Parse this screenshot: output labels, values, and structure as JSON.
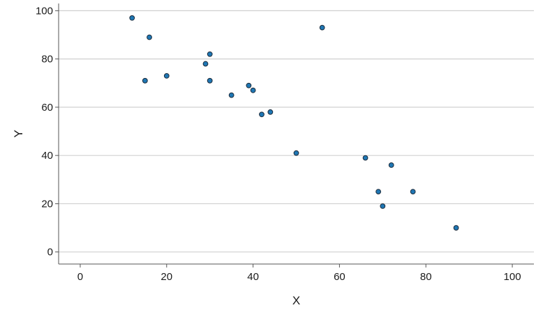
{
  "chart_data": {
    "type": "scatter",
    "title": "",
    "xlabel": "X",
    "ylabel": "Y",
    "xlim": [
      -5,
      105
    ],
    "ylim": [
      -5,
      103
    ],
    "xticks": [
      0,
      20,
      40,
      60,
      80,
      100
    ],
    "yticks": [
      0,
      20,
      40,
      60,
      80,
      100
    ],
    "grid": {
      "horizontal": true,
      "vertical": false
    },
    "point_color": "#1f77b4",
    "points": [
      {
        "x": 12,
        "y": 97
      },
      {
        "x": 16,
        "y": 89
      },
      {
        "x": 15,
        "y": 71
      },
      {
        "x": 20,
        "y": 73
      },
      {
        "x": 29,
        "y": 78
      },
      {
        "x": 30,
        "y": 82
      },
      {
        "x": 30,
        "y": 71
      },
      {
        "x": 35,
        "y": 65
      },
      {
        "x": 39,
        "y": 69
      },
      {
        "x": 40,
        "y": 67
      },
      {
        "x": 42,
        "y": 57
      },
      {
        "x": 44,
        "y": 58
      },
      {
        "x": 50,
        "y": 41
      },
      {
        "x": 56,
        "y": 93
      },
      {
        "x": 66,
        "y": 39
      },
      {
        "x": 69,
        "y": 25
      },
      {
        "x": 70,
        "y": 19
      },
      {
        "x": 72,
        "y": 36
      },
      {
        "x": 77,
        "y": 25
      },
      {
        "x": 87,
        "y": 10
      }
    ]
  }
}
